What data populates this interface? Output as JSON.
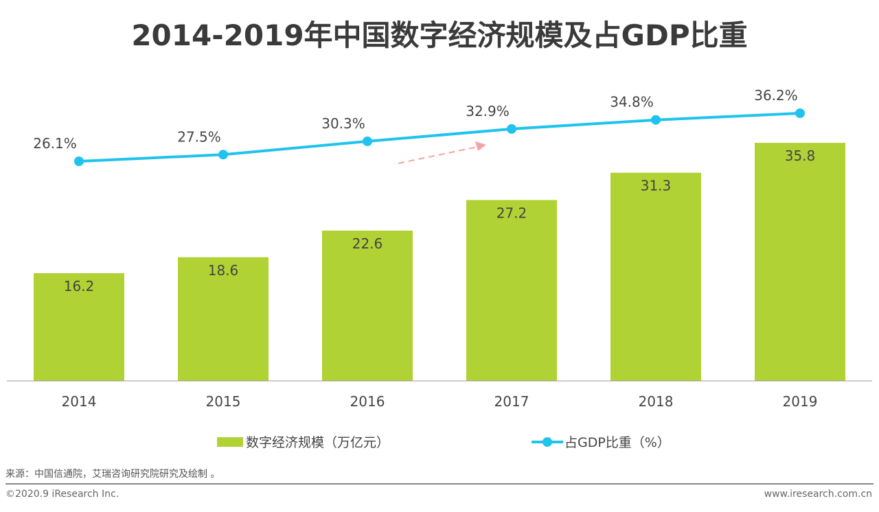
{
  "chart_data": {
    "type": "bar+line",
    "title": "2014-2019年中国数字经济规模及占GDP比重",
    "categories": [
      "2014",
      "2015",
      "2016",
      "2017",
      "2018",
      "2019"
    ],
    "series": [
      {
        "name": "数字经济规模（万亿元）",
        "type": "bar",
        "color": "#b1d234",
        "values": [
          16.2,
          18.6,
          22.6,
          27.2,
          31.3,
          35.8
        ],
        "labels": [
          "16.2",
          "18.6",
          "22.6",
          "27.2",
          "31.3",
          "35.8"
        ]
      },
      {
        "name": "占GDP比重（%）",
        "type": "line",
        "color": "#1fc3ee",
        "values": [
          26.1,
          27.5,
          30.3,
          32.9,
          34.8,
          36.2
        ],
        "labels": [
          "26.1%",
          "27.5%",
          "30.3%",
          "32.9%",
          "34.8%",
          "36.2%"
        ]
      }
    ],
    "annotation": "dashed upward trend arrow",
    "arrow_color": "#f4a3a3",
    "grid": false,
    "legend_position": "bottom"
  },
  "footer": {
    "source": "来源：中国信通院，艾瑞咨询研究院研究及绘制 。",
    "copyright": "©2020.9 iResearch Inc.",
    "website": "www.iresearch.com.cn"
  }
}
